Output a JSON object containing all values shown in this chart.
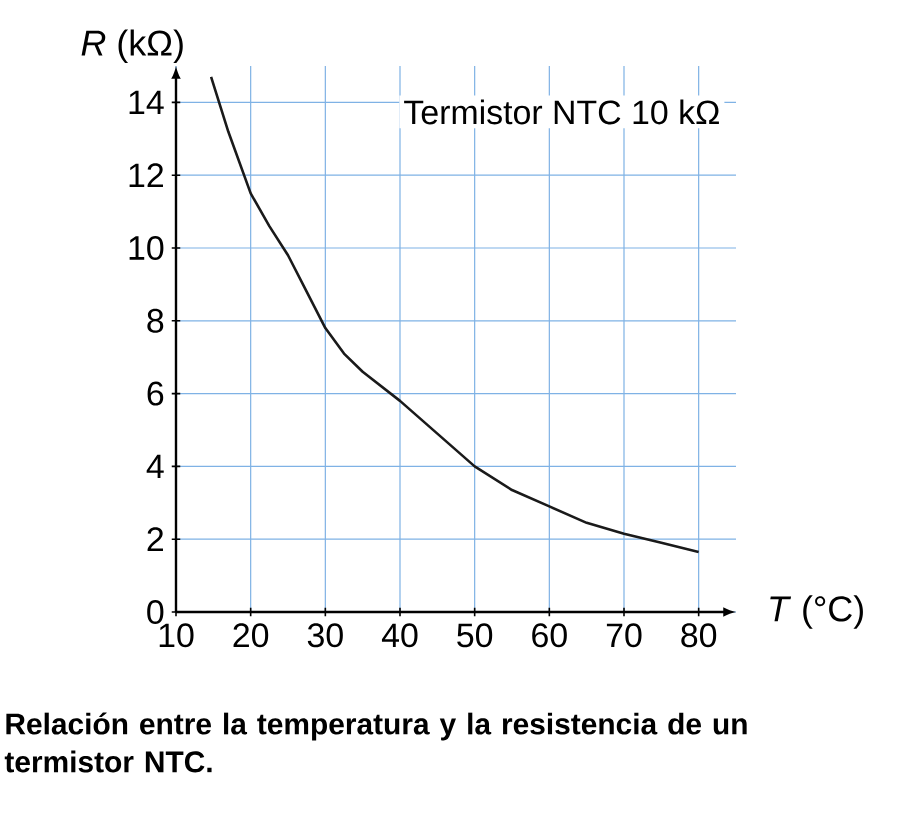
{
  "chart_data": {
    "type": "line",
    "xlabel": "*T* (°C)",
    "ylabel": "*R* (kΩ)",
    "x": [
      14.7,
      17,
      20,
      22.5,
      25,
      27.5,
      30,
      32.5,
      35,
      40,
      45,
      50,
      55,
      60,
      65,
      70,
      75,
      80
    ],
    "series": [
      {
        "color": "#1a1a1a",
        "values": [
          14.7,
          13.2,
          11.5,
          10.6,
          9.8,
          8.8,
          7.8,
          7.1,
          6.6,
          5.8,
          4.9,
          4.0,
          3.35,
          2.9,
          2.45,
          2.15,
          1.9,
          1.65
        ]
      }
    ],
    "xlim": [
      10,
      85
    ],
    "ylim": [
      0,
      15
    ],
    "xticks": [
      10,
      20,
      30,
      40,
      50,
      60,
      70,
      80
    ],
    "yticks": [
      0,
      2,
      4,
      6,
      8,
      10,
      12,
      14
    ],
    "grid": true,
    "marker": "none",
    "line_style": "solid",
    "annotations": [
      "Termistor NTC 10 kΩ",
      "**Relación entre la temperatura y la resistencia de un termistor NTC.**"
    ]
  }
}
